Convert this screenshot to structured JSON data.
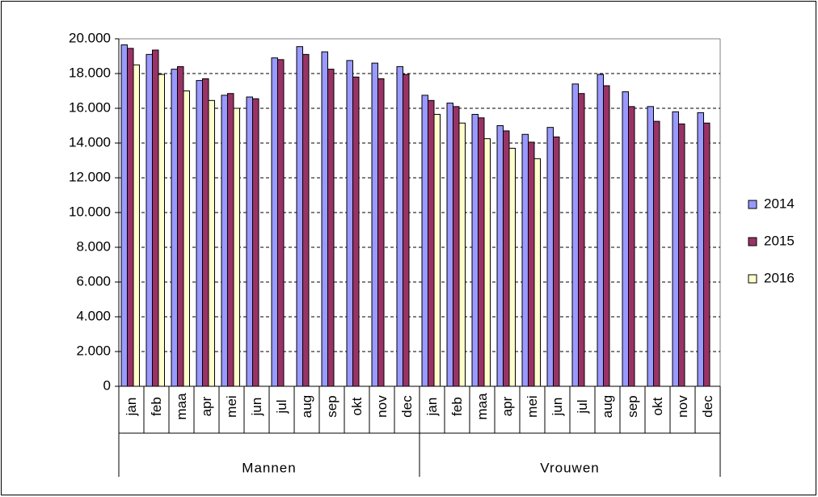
{
  "chart_data": {
    "type": "bar",
    "categories": [
      "jan",
      "feb",
      "maa",
      "apr",
      "mei",
      "jun",
      "jul",
      "aug",
      "sep",
      "okt",
      "nov",
      "dec",
      "jan",
      "feb",
      "maa",
      "apr",
      "mei",
      "jun",
      "jul",
      "aug",
      "sep",
      "okt",
      "nov",
      "dec"
    ],
    "groups": [
      "Mannen",
      "Vrouwen"
    ],
    "series": [
      {
        "name": "2014",
        "color": "#9999ff",
        "values": [
          19650,
          19100,
          18250,
          17600,
          16750,
          16650,
          18900,
          19550,
          19250,
          18750,
          18600,
          18400,
          16750,
          16300,
          15650,
          15000,
          14500,
          14900,
          17400,
          17950,
          16950,
          16100,
          15800,
          15750
        ]
      },
      {
        "name": "2015",
        "color": "#993366",
        "values": [
          19450,
          19350,
          18400,
          17700,
          16850,
          16550,
          18800,
          19100,
          18250,
          17800,
          17700,
          17950,
          16450,
          16100,
          15450,
          14700,
          14050,
          14350,
          16850,
          17300,
          16100,
          15250,
          15100,
          15150
        ]
      },
      {
        "name": "2016",
        "color": "#ffffcc",
        "values": [
          18500,
          17950,
          17000,
          16450,
          16000,
          null,
          null,
          null,
          null,
          null,
          null,
          null,
          15650,
          15150,
          14250,
          13700,
          13100,
          null,
          null,
          null,
          null,
          null,
          null,
          null
        ]
      }
    ],
    "ylim": [
      0,
      20000
    ],
    "yticks": [
      0,
      {
        "value": 2000,
        "label": "2.000"
      },
      {
        "value": 4000,
        "label": "4.000"
      },
      {
        "value": 6000,
        "label": "6.000"
      },
      {
        "value": 8000,
        "label": "8.000"
      },
      {
        "value": 10000,
        "label": "10.000"
      },
      {
        "value": 12000,
        "label": "12.000"
      },
      {
        "value": 14000,
        "label": "14.000"
      },
      {
        "value": 16000,
        "label": "16.000"
      },
      {
        "value": 18000,
        "label": "18.000"
      },
      {
        "value": 20000,
        "label": "20.000"
      }
    ],
    "grid": true,
    "legend": "right"
  }
}
